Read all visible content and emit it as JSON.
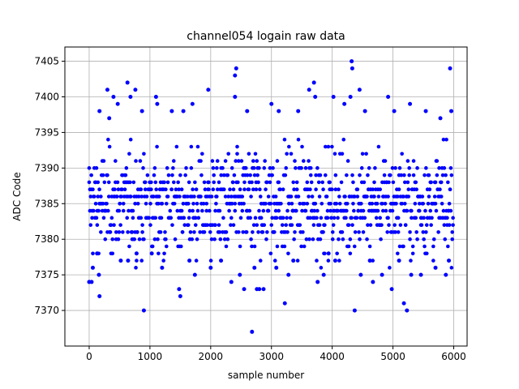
{
  "chart_data": {
    "type": "scatter",
    "title": "channel054 logain raw data",
    "xlabel": "sample number",
    "ylabel": "ADC Code",
    "xlim": [
      -400,
      6220
    ],
    "ylim": [
      7365,
      7407
    ],
    "xticks": [
      0,
      1000,
      2000,
      3000,
      4000,
      5000,
      6000
    ],
    "yticks": [
      7370,
      7375,
      7380,
      7385,
      7390,
      7395,
      7400,
      7405
    ],
    "grid": true,
    "n_samples": 6000,
    "band_low": 7376,
    "band_high": 7394,
    "marker_color": "#0000ff",
    "outliers": [
      {
        "x": 0,
        "y": 7374
      },
      {
        "x": 40,
        "y": 7374
      },
      {
        "x": 60,
        "y": 7376
      },
      {
        "x": 170,
        "y": 7372
      },
      {
        "x": 160,
        "y": 7375
      },
      {
        "x": 130,
        "y": 7378
      },
      {
        "x": 170,
        "y": 7398
      },
      {
        "x": 300,
        "y": 7401
      },
      {
        "x": 330,
        "y": 7397
      },
      {
        "x": 400,
        "y": 7400
      },
      {
        "x": 470,
        "y": 7399
      },
      {
        "x": 520,
        "y": 7377
      },
      {
        "x": 630,
        "y": 7402
      },
      {
        "x": 640,
        "y": 7377
      },
      {
        "x": 680,
        "y": 7400
      },
      {
        "x": 760,
        "y": 7401
      },
      {
        "x": 780,
        "y": 7378
      },
      {
        "x": 870,
        "y": 7398
      },
      {
        "x": 900,
        "y": 7370
      },
      {
        "x": 1030,
        "y": 7378
      },
      {
        "x": 1100,
        "y": 7400
      },
      {
        "x": 1120,
        "y": 7399
      },
      {
        "x": 1200,
        "y": 7376
      },
      {
        "x": 1360,
        "y": 7398
      },
      {
        "x": 1480,
        "y": 7373
      },
      {
        "x": 1500,
        "y": 7372
      },
      {
        "x": 1550,
        "y": 7398
      },
      {
        "x": 1650,
        "y": 7377
      },
      {
        "x": 1700,
        "y": 7399
      },
      {
        "x": 1740,
        "y": 7375
      },
      {
        "x": 1960,
        "y": 7401
      },
      {
        "x": 2000,
        "y": 7376
      },
      {
        "x": 2170,
        "y": 7377
      },
      {
        "x": 2340,
        "y": 7374
      },
      {
        "x": 2400,
        "y": 7403
      },
      {
        "x": 2420,
        "y": 7404
      },
      {
        "x": 2400,
        "y": 7400
      },
      {
        "x": 2480,
        "y": 7375
      },
      {
        "x": 2550,
        "y": 7373
      },
      {
        "x": 2600,
        "y": 7398
      },
      {
        "x": 2680,
        "y": 7367
      },
      {
        "x": 2720,
        "y": 7376
      },
      {
        "x": 2760,
        "y": 7373
      },
      {
        "x": 2800,
        "y": 7373
      },
      {
        "x": 2870,
        "y": 7373
      },
      {
        "x": 3000,
        "y": 7399
      },
      {
        "x": 3080,
        "y": 7376
      },
      {
        "x": 3120,
        "y": 7398
      },
      {
        "x": 3220,
        "y": 7371
      },
      {
        "x": 3280,
        "y": 7375
      },
      {
        "x": 3360,
        "y": 7377
      },
      {
        "x": 3440,
        "y": 7398
      },
      {
        "x": 3620,
        "y": 7401
      },
      {
        "x": 3700,
        "y": 7402
      },
      {
        "x": 3720,
        "y": 7400
      },
      {
        "x": 3760,
        "y": 7374
      },
      {
        "x": 3860,
        "y": 7375
      },
      {
        "x": 3940,
        "y": 7378
      },
      {
        "x": 4020,
        "y": 7400
      },
      {
        "x": 4050,
        "y": 7377
      },
      {
        "x": 4200,
        "y": 7399
      },
      {
        "x": 4320,
        "y": 7405
      },
      {
        "x": 4330,
        "y": 7404
      },
      {
        "x": 4300,
        "y": 7400
      },
      {
        "x": 4370,
        "y": 7370
      },
      {
        "x": 4450,
        "y": 7401
      },
      {
        "x": 4470,
        "y": 7375
      },
      {
        "x": 4540,
        "y": 7398
      },
      {
        "x": 4620,
        "y": 7377
      },
      {
        "x": 4670,
        "y": 7374
      },
      {
        "x": 4820,
        "y": 7375
      },
      {
        "x": 4920,
        "y": 7400
      },
      {
        "x": 4980,
        "y": 7373
      },
      {
        "x": 5020,
        "y": 7398
      },
      {
        "x": 5100,
        "y": 7377
      },
      {
        "x": 5180,
        "y": 7371
      },
      {
        "x": 5230,
        "y": 7370
      },
      {
        "x": 5280,
        "y": 7399
      },
      {
        "x": 5300,
        "y": 7375
      },
      {
        "x": 5460,
        "y": 7375
      },
      {
        "x": 5540,
        "y": 7398
      },
      {
        "x": 5700,
        "y": 7376
      },
      {
        "x": 5780,
        "y": 7397
      },
      {
        "x": 5870,
        "y": 7375
      },
      {
        "x": 5920,
        "y": 7377
      },
      {
        "x": 5940,
        "y": 7404
      },
      {
        "x": 5960,
        "y": 7398
      }
    ]
  }
}
